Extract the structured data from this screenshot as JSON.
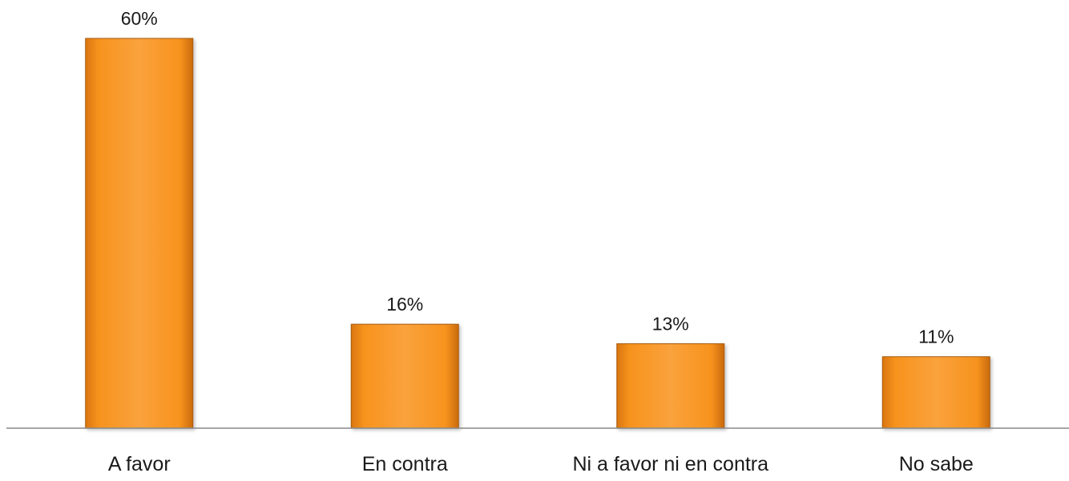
{
  "chart_data": {
    "type": "bar",
    "title": "",
    "xlabel": "",
    "ylabel": "",
    "categories": [
      "A favor",
      "En contra",
      "Ni a favor ni en contra",
      "No sabe"
    ],
    "values": [
      60,
      16,
      13,
      11
    ],
    "value_labels": [
      "60%",
      "16%",
      "13%",
      "11%"
    ],
    "ylim": [
      0,
      60
    ],
    "grid": false,
    "legend": "none",
    "bar_color": "#F7931E",
    "bar_edge_color": "#A85A10",
    "axis_color": "#888888"
  }
}
